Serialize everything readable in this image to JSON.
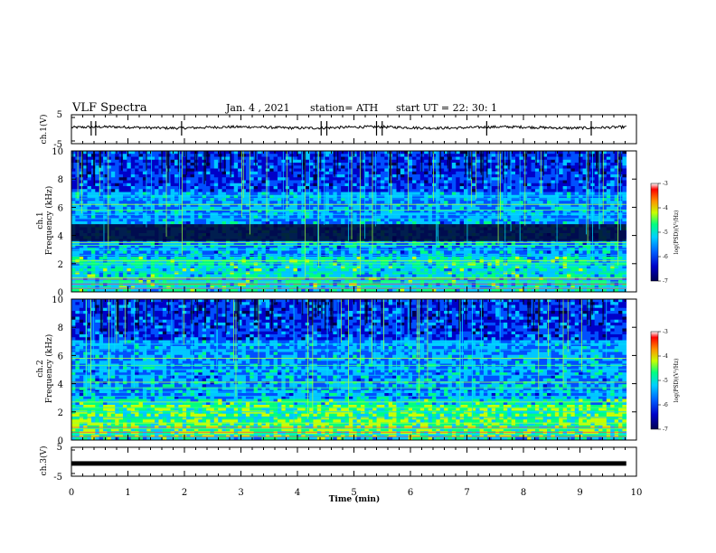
{
  "header": {
    "title": "VLF Spectra",
    "date": "Jan. 4 , 2021",
    "station": "station= ATH",
    "start_ut": "start UT =  22: 30: 1"
  },
  "chart_data": {
    "type": "heatmap",
    "x_axis": {
      "label": "Time (min)",
      "range": [
        0,
        10
      ],
      "ticks": [
        "0",
        "1",
        "2",
        "3",
        "4",
        "5",
        "6",
        "7",
        "8",
        "9",
        "10"
      ],
      "data_end_min": 9.82
    },
    "panels": [
      {
        "id": "ch1-voltage",
        "type": "line",
        "ylabel": "ch.1(V)",
        "ylim": [
          -5,
          5
        ],
        "yticks": [
          "5",
          "-5"
        ],
        "baseline_volts": 0.6,
        "spikes_min": [
          0.35,
          0.43,
          1.95,
          4.42,
          4.52,
          5.4,
          5.5,
          7.35,
          9.2
        ]
      },
      {
        "id": "ch1-spectrogram",
        "type": "heatmap",
        "ylabel": "ch.1",
        "ylabel2": "Frequency (kHz)",
        "ylim": [
          0,
          10
        ],
        "yticks": [
          "0",
          "2",
          "4",
          "6",
          "8",
          "10"
        ],
        "colorbar": {
          "label": "log(PSD)(V²/Hz)",
          "ticks": [
            "-3",
            "-4",
            "-5",
            "-6",
            "-7"
          ],
          "range": [
            -7,
            -3
          ]
        },
        "dark_band_khz": [
          3.6,
          4.8
        ],
        "lines_khz": [
          0.3,
          0.7,
          1.0,
          1.4,
          1.8,
          2.0,
          2.2,
          2.6,
          3.0,
          3.3,
          3.5,
          5.2,
          5.5,
          5.8,
          6.2,
          6.6,
          6.8
        ]
      },
      {
        "id": "ch2-spectrogram",
        "type": "heatmap",
        "ylabel": "ch.2",
        "ylabel2": "Frequency (kHz)",
        "ylim": [
          0,
          10
        ],
        "yticks": [
          "0",
          "2",
          "4",
          "6",
          "8",
          "10"
        ],
        "colorbar": {
          "label": "log(PSD)(V²/Hz)",
          "ticks": [
            "-3",
            "-4",
            "-5",
            "-6",
            "-7"
          ],
          "range": [
            -7,
            -3
          ]
        },
        "dark_band_khz": [],
        "lines_khz": [
          0.4,
          0.8,
          1.2,
          1.6,
          2.0,
          2.3,
          2.7,
          3.1,
          3.4,
          3.7,
          4.1,
          4.6,
          5.0,
          5.3,
          5.8,
          6.4,
          6.8
        ]
      },
      {
        "id": "ch3-voltage",
        "type": "line",
        "ylabel": "ch.3(V)",
        "ylim": [
          -5,
          5
        ],
        "yticks": [
          "5",
          "-5"
        ],
        "baseline_volts": -0.6
      }
    ]
  },
  "colors": {
    "colormap": [
      "#000050",
      "#0000c8",
      "#0050ff",
      "#00c8ff",
      "#00ff80",
      "#c8ff00",
      "#ffa000",
      "#ff0000",
      "#ffffff"
    ]
  }
}
